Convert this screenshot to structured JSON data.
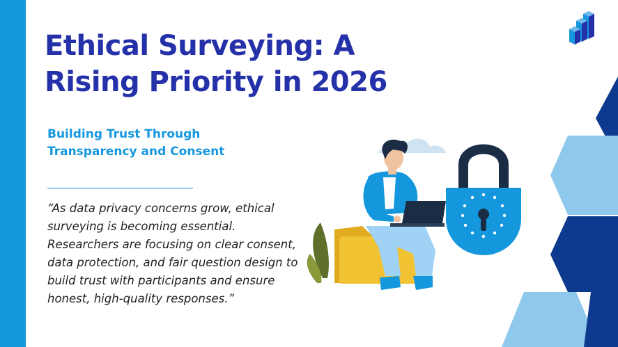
{
  "slide": {
    "title": "Ethical Surveying: A Rising Priority in 2026",
    "subtitle": "Building Trust Through Transparency and Consent",
    "quote": "“As data privacy concerns grow, ethical surveying is becoming essential. Researchers are focusing on clear consent, data protection, and fair question design to build trust with participants and ensure honest, high-quality responses.”"
  },
  "colors": {
    "title": "#2431a8",
    "accent": "#1597de",
    "navy": "#0d3a8f",
    "light_blue": "#8ec8ec",
    "lock_body": "#1597de",
    "lock_shackle": "#1a2d44",
    "folder": "#f1c232"
  },
  "icons": {
    "logo": "bar-chart-cubes-icon",
    "illustration": "person-laptop-padlock-illustration"
  }
}
